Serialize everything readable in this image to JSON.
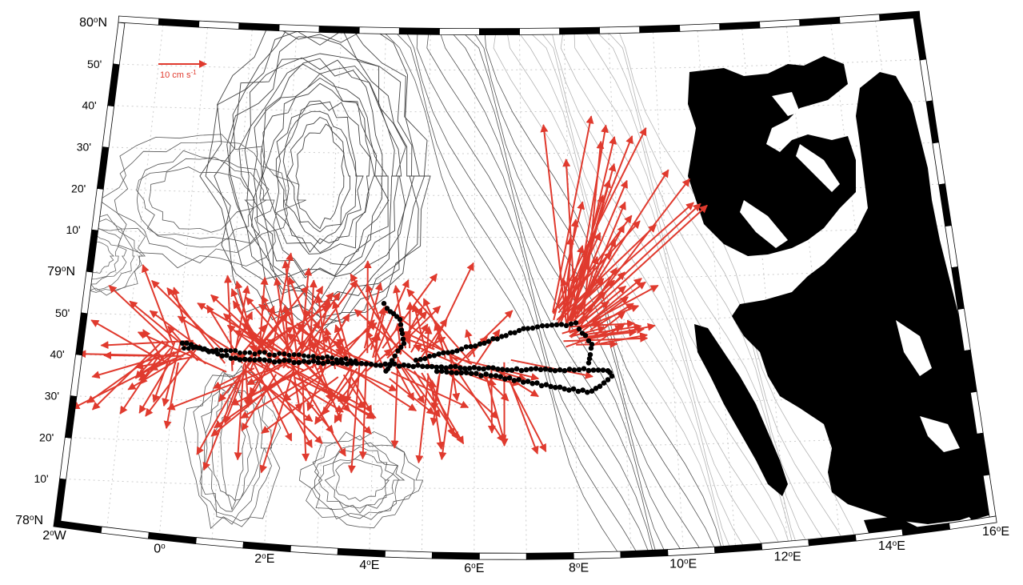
{
  "map": {
    "lat_labels": [
      {
        "text": "80°N",
        "base": "80",
        "sup": "o",
        "suffix": "N",
        "major": true
      },
      {
        "text": "50'",
        "major": false
      },
      {
        "text": "40'",
        "major": false
      },
      {
        "text": "30'",
        "major": false
      },
      {
        "text": "20'",
        "major": false
      },
      {
        "text": "10'",
        "major": false
      },
      {
        "text": "79°N",
        "base": "79",
        "sup": "o",
        "suffix": "N",
        "major": true
      },
      {
        "text": "50'",
        "major": false
      },
      {
        "text": "40'",
        "major": false
      },
      {
        "text": "30'",
        "major": false
      },
      {
        "text": "20'",
        "major": false
      },
      {
        "text": "10'",
        "major": false
      },
      {
        "text": "78°N",
        "base": "78",
        "sup": "o",
        "suffix": "N",
        "major": true
      }
    ],
    "lon_labels": [
      {
        "text": "2°W",
        "base": "2",
        "sup": "o",
        "suffix": "W"
      },
      {
        "text": "0°",
        "base": "0",
        "sup": "o",
        "suffix": ""
      },
      {
        "text": "2°E",
        "base": "2",
        "sup": "o",
        "suffix": "E"
      },
      {
        "text": "4°E",
        "base": "4",
        "sup": "o",
        "suffix": "E"
      },
      {
        "text": "6°E",
        "base": "6",
        "sup": "o",
        "suffix": "E"
      },
      {
        "text": "8°E",
        "base": "8",
        "sup": "o",
        "suffix": "E"
      },
      {
        "text": "10°E",
        "base": "10",
        "sup": "o",
        "suffix": "E"
      },
      {
        "text": "12°E",
        "base": "12",
        "sup": "o",
        "suffix": "E"
      },
      {
        "text": "14°E",
        "base": "14",
        "sup": "o",
        "suffix": "E"
      },
      {
        "text": "16°E",
        "base": "16",
        "sup": "o",
        "suffix": "E"
      }
    ],
    "scale_arrow": {
      "text": "10 cm s-1",
      "base": "10 cm s",
      "sup": "-1",
      "value_cm_s": 10
    },
    "colors": {
      "arrow": "#e03a2e",
      "station": "#000000",
      "land": "#000000",
      "contour_deep": "#444444",
      "contour_shallow": "#bbbbbb",
      "grid": "#cccccc"
    }
  }
}
